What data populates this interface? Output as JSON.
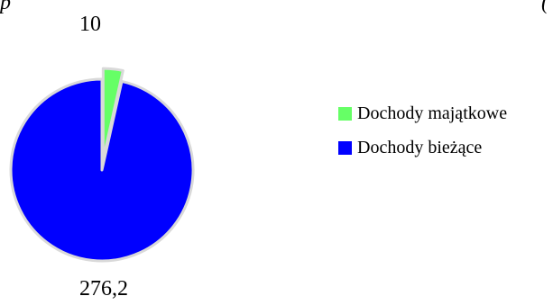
{
  "chart_data": {
    "type": "pie",
    "categories": [
      "Dochody majątkowe",
      "Dochody bieżące"
    ],
    "values": [
      10,
      276.2
    ],
    "value_labels": [
      "10",
      "276,2"
    ],
    "colors": [
      "#66ff66",
      "#0000ff"
    ],
    "exploded": [
      true,
      false
    ],
    "legend_position": "right",
    "title": "",
    "top_text_fragments": [
      "p",
      "("
    ]
  }
}
